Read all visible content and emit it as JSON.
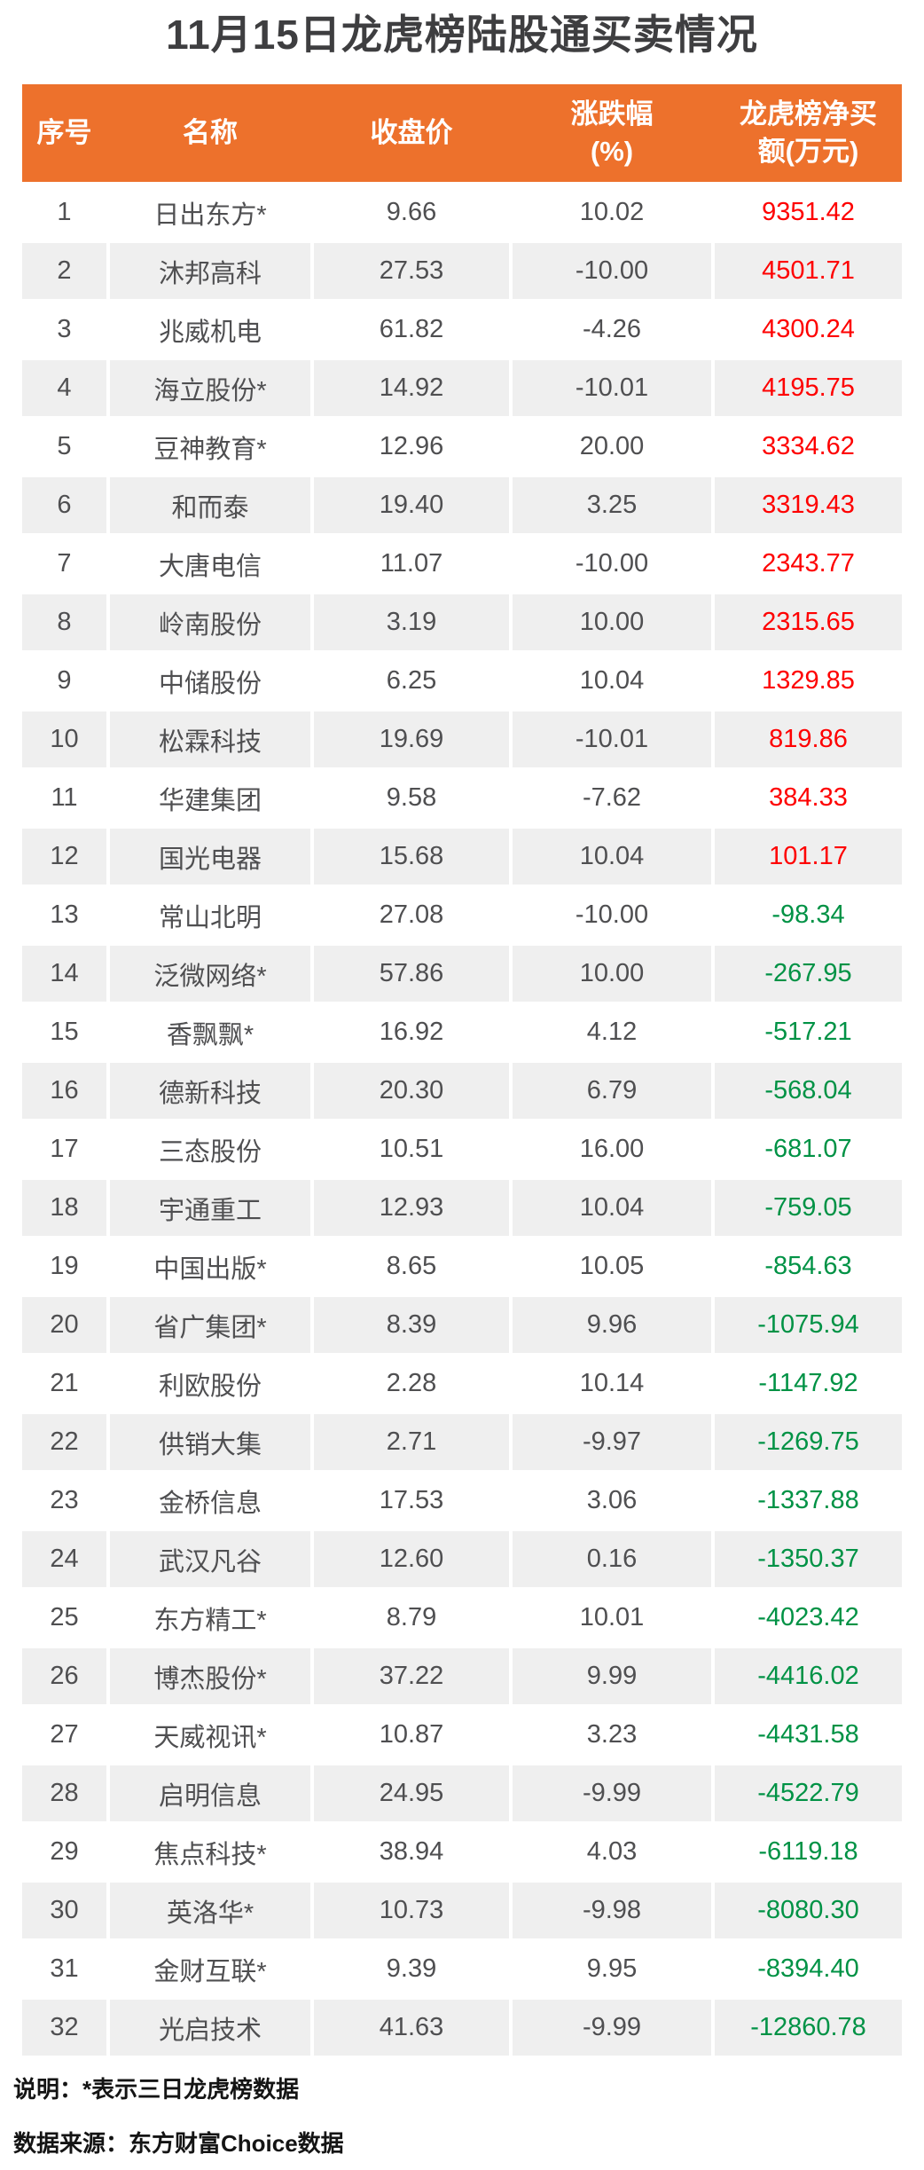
{
  "title": "11月15日龙虎榜陆股通买卖情况",
  "colors": {
    "header_bg": "#ed712c",
    "header_text": "#ffffff",
    "title_color": "#3e3e40",
    "body_text": "#4f4f51",
    "alt_row_bg": "#efefef",
    "positive_value": "#fe0000",
    "negative_value": "#009245"
  },
  "chart_data": {
    "type": "table",
    "title": "11月15日龙虎榜陆股通买卖情况",
    "columns": [
      "序号",
      "名称",
      "收盘价",
      "涨跌幅(%)",
      "龙虎榜净买额(万元)"
    ],
    "rows": [
      [
        "1",
        "日出东方*",
        "9.66",
        "10.02",
        "9351.42"
      ],
      [
        "2",
        "沐邦高科",
        "27.53",
        "-10.00",
        "4501.71"
      ],
      [
        "3",
        "兆威机电",
        "61.82",
        "-4.26",
        "4300.24"
      ],
      [
        "4",
        "海立股份*",
        "14.92",
        "-10.01",
        "4195.75"
      ],
      [
        "5",
        "豆神教育*",
        "12.96",
        "20.00",
        "3334.62"
      ],
      [
        "6",
        "和而泰",
        "19.40",
        "3.25",
        "3319.43"
      ],
      [
        "7",
        "大唐电信",
        "11.07",
        "-10.00",
        "2343.77"
      ],
      [
        "8",
        "岭南股份",
        "3.19",
        "10.00",
        "2315.65"
      ],
      [
        "9",
        "中储股份",
        "6.25",
        "10.04",
        "1329.85"
      ],
      [
        "10",
        "松霖科技",
        "19.69",
        "-10.01",
        "819.86"
      ],
      [
        "11",
        "华建集团",
        "9.58",
        "-7.62",
        "384.33"
      ],
      [
        "12",
        "国光电器",
        "15.68",
        "10.04",
        "101.17"
      ],
      [
        "13",
        "常山北明",
        "27.08",
        "-10.00",
        "-98.34"
      ],
      [
        "14",
        "泛微网络*",
        "57.86",
        "10.00",
        "-267.95"
      ],
      [
        "15",
        "香飘飘*",
        "16.92",
        "4.12",
        "-517.21"
      ],
      [
        "16",
        "德新科技",
        "20.30",
        "6.79",
        "-568.04"
      ],
      [
        "17",
        "三态股份",
        "10.51",
        "16.00",
        "-681.07"
      ],
      [
        "18",
        "宇通重工",
        "12.93",
        "10.04",
        "-759.05"
      ],
      [
        "19",
        "中国出版*",
        "8.65",
        "10.05",
        "-854.63"
      ],
      [
        "20",
        "省广集团*",
        "8.39",
        "9.96",
        "-1075.94"
      ],
      [
        "21",
        "利欧股份",
        "2.28",
        "10.14",
        "-1147.92"
      ],
      [
        "22",
        "供销大集",
        "2.71",
        "-9.97",
        "-1269.75"
      ],
      [
        "23",
        "金桥信息",
        "17.53",
        "3.06",
        "-1337.88"
      ],
      [
        "24",
        "武汉凡谷",
        "12.60",
        "0.16",
        "-1350.37"
      ],
      [
        "25",
        "东方精工*",
        "8.79",
        "10.01",
        "-4023.42"
      ],
      [
        "26",
        "博杰股份*",
        "37.22",
        "9.99",
        "-4416.02"
      ],
      [
        "27",
        "天威视讯*",
        "10.87",
        "3.23",
        "-4431.58"
      ],
      [
        "28",
        "启明信息",
        "24.95",
        "-9.99",
        "-4522.79"
      ],
      [
        "29",
        "焦点科技*",
        "38.94",
        "4.03",
        "-6119.18"
      ],
      [
        "30",
        "英洛华*",
        "10.73",
        "-9.98",
        "-8080.30"
      ],
      [
        "31",
        "金财互联*",
        "9.39",
        "9.95",
        "-8394.40"
      ],
      [
        "32",
        "光启技术",
        "41.63",
        "-9.99",
        "-12860.78"
      ]
    ]
  },
  "table": {
    "header_labels": [
      "序号",
      "名称",
      "收盘价",
      "涨跌幅\n(%)",
      "龙虎榜净买\n额(万元)"
    ]
  },
  "notes": {
    "explanation": "说明：*表示三日龙虎榜数据",
    "source": "数据来源：东方财富Choice数据"
  }
}
